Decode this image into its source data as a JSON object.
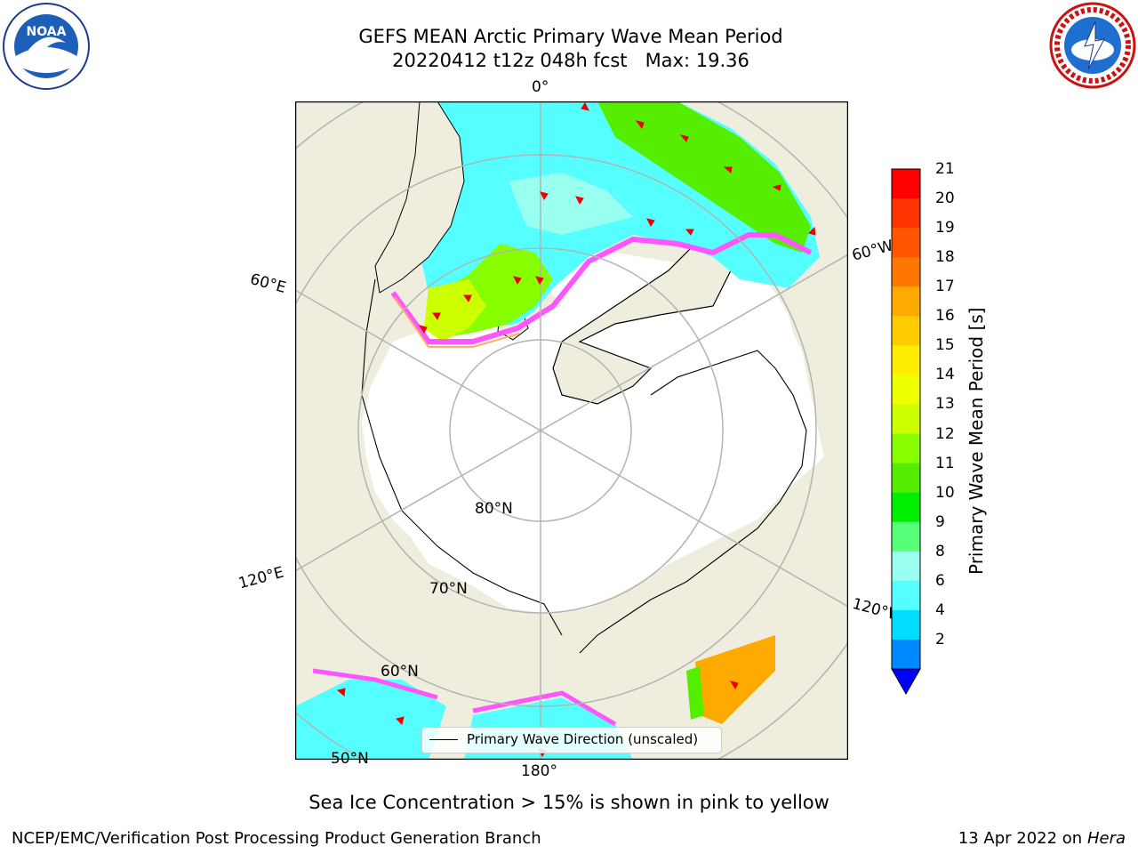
{
  "title": {
    "line1": "GEFS MEAN Arctic Primary Wave Mean Period",
    "line2": "20220412 t12z 048h fcst   Max: 19.36"
  },
  "map_labels": {
    "lon_0": "0°",
    "lon_60w": "60°W",
    "lon_60e": "60°E",
    "lon_120e": "120°E",
    "lon_120w": "120°W",
    "lon_180": "180°",
    "lat_80": "80°N",
    "lat_70": "70°N",
    "lat_60": "60°N",
    "lat_50": "50°N"
  },
  "legend": {
    "label": "Primary Wave Direction (unscaled)"
  },
  "colorbar": {
    "label": "Primary Wave Mean Period [s]",
    "ticks": [
      "21",
      "20",
      "19",
      "18",
      "17",
      "16",
      "15",
      "14",
      "13",
      "12",
      "11",
      "10",
      "9",
      "8",
      "6",
      "4",
      "2"
    ],
    "colors": [
      "#ff0000",
      "#ff3300",
      "#ff5500",
      "#ff7700",
      "#ffaa00",
      "#ffcc00",
      "#ffee00",
      "#eeff00",
      "#ccff00",
      "#88ff00",
      "#55ee00",
      "#00ee00",
      "#55ff77",
      "#99ffee",
      "#55ffff",
      "#00ddff",
      "#0088ff"
    ],
    "extend_color": "#0000ff"
  },
  "ice_note": "Sea Ice Concentration > 15% is shown in pink to yellow",
  "footer": {
    "left": "NCEP/EMC/Verification Post Processing Product Generation Branch",
    "right_prefix": "13 Apr 2022 on ",
    "right_host": "Hera"
  },
  "logos": {
    "left": "noaa-logo",
    "right": "nws-logo"
  }
}
